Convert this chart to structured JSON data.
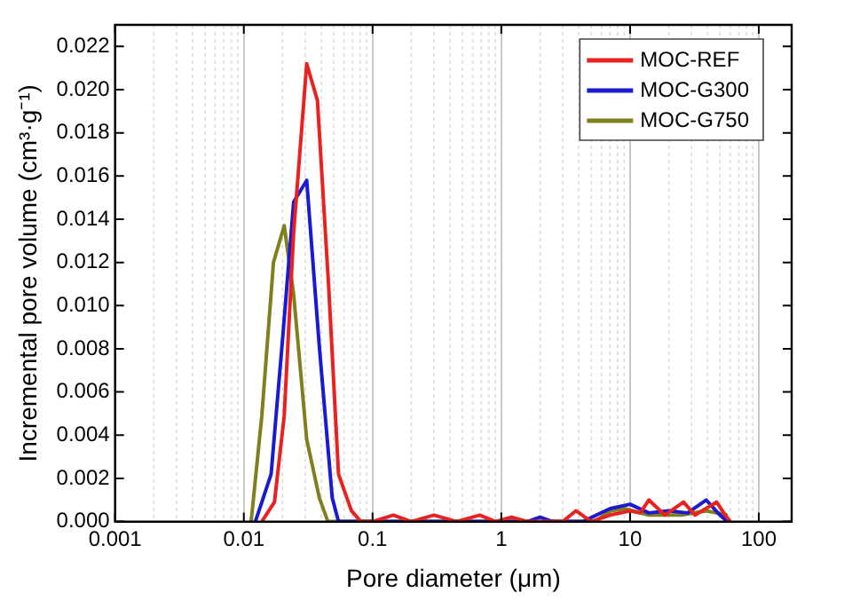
{
  "chart_data": {
    "type": "line",
    "xlabel": "Pore diameter (μm)",
    "ylabel": "Incremental pore volume (cm³·g⁻¹)",
    "log": "x",
    "grid": "x",
    "legend": "top right",
    "marker": "none",
    "line_style": "solid",
    "xlim": [
      0.001,
      180
    ],
    "xticks": [
      0.001,
      0.01,
      0.1,
      1,
      10,
      100
    ],
    "ylim": [
      0,
      0.023
    ],
    "yticks": [
      {
        "value": 0,
        "label": "0.000"
      },
      {
        "value": 0.002,
        "label": "0.002"
      },
      {
        "value": 0.004,
        "label": "0.004"
      },
      {
        "value": 0.006,
        "label": "0.006"
      },
      {
        "value": 0.008,
        "label": "0.008"
      },
      {
        "value": 0.01,
        "label": "0.010"
      },
      {
        "value": 0.012,
        "label": "0.012"
      },
      {
        "value": 0.014,
        "label": "0.014"
      },
      {
        "value": 0.016,
        "label": "0.016"
      },
      {
        "value": 0.018,
        "label": "0.018"
      },
      {
        "value": 0.02,
        "label": "0.020"
      },
      {
        "value": 0.022,
        "label": "0.022"
      }
    ],
    "series": [
      {
        "name": "MOC-REF",
        "color": "#e8231f",
        "x": [
          0.0138,
          0.0173,
          0.0206,
          0.0244,
          0.0308,
          0.0373,
          0.0457,
          0.0544,
          0.0685,
          0.081,
          0.1,
          0.145,
          0.2,
          0.3,
          0.45,
          0.68,
          0.9,
          1.2,
          1.6,
          3,
          3.8,
          5,
          7,
          10,
          12,
          14,
          18.6,
          26,
          32,
          47,
          55,
          60
        ],
        "values": [
          0,
          0.0009,
          0.0049,
          0.0134,
          0.0212,
          0.0195,
          0.0108,
          0.0022,
          0.0005,
          0,
          0,
          0.0003,
          0,
          0.0003,
          0,
          0.0003,
          0,
          0.0002,
          0,
          0,
          0.0005,
          0,
          0.0003,
          0.0005,
          0.0004,
          0.001,
          0.0003,
          0.0009,
          0.0003,
          0.0009,
          0.0003,
          0
        ]
      },
      {
        "name": "MOC-G300",
        "color": "#1a1ad0",
        "x": [
          0.0123,
          0.0163,
          0.0201,
          0.0244,
          0.0308,
          0.0386,
          0.0486,
          0.0544,
          1.6,
          2,
          2.5,
          4.3,
          7,
          10,
          14,
          20,
          28,
          39,
          50,
          57
        ],
        "values": [
          0,
          0.0022,
          0.0086,
          0.0148,
          0.0158,
          0.0081,
          0.0011,
          0,
          0,
          0.0002,
          0,
          0,
          0.0006,
          0.0008,
          0.0004,
          0.0005,
          0.0004,
          0.001,
          0.0003,
          0
        ]
      },
      {
        "name": "MOC-G750",
        "color": "#7f7f1e",
        "x": [
          0.0114,
          0.0138,
          0.017,
          0.0206,
          0.0244,
          0.0308,
          0.0386,
          0.045,
          5.3,
          7.1,
          9,
          14,
          25,
          39,
          57
        ],
        "values": [
          0,
          0.0049,
          0.012,
          0.0137,
          0.0105,
          0.0038,
          0.0011,
          0,
          0,
          0.0005,
          0.0006,
          0.0003,
          0.0003,
          0.0005,
          0.0003
        ]
      }
    ]
  }
}
